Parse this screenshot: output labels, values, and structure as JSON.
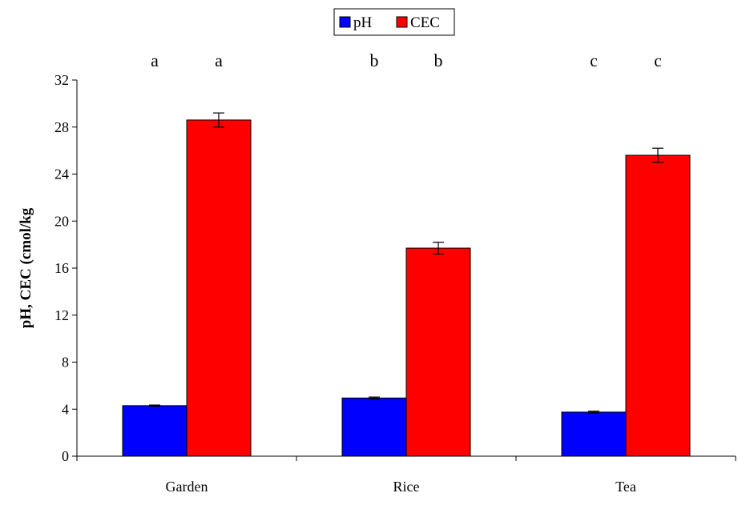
{
  "chart_data": {
    "type": "bar",
    "categories": [
      "Garden",
      "Rice",
      "Tea"
    ],
    "series": [
      {
        "name": "pH",
        "color": "#0000ff",
        "values": [
          4.3,
          4.95,
          3.75
        ],
        "errors": [
          0.05,
          0.08,
          0.08
        ]
      },
      {
        "name": "CEC",
        "color": "#ff0000",
        "values": [
          28.6,
          17.7,
          25.6
        ],
        "errors": [
          0.6,
          0.5,
          0.6
        ]
      }
    ],
    "significance_letters": [
      [
        "a",
        "a"
      ],
      [
        "b",
        "b"
      ],
      [
        "c",
        "c"
      ]
    ],
    "ylabel": "pH, CEC (cmol/kg",
    "ylim": [
      0,
      32
    ],
    "yticks": [
      0,
      4,
      8,
      12,
      16,
      20,
      24,
      28,
      32
    ],
    "legend_position": "top-center",
    "grid": false
  }
}
